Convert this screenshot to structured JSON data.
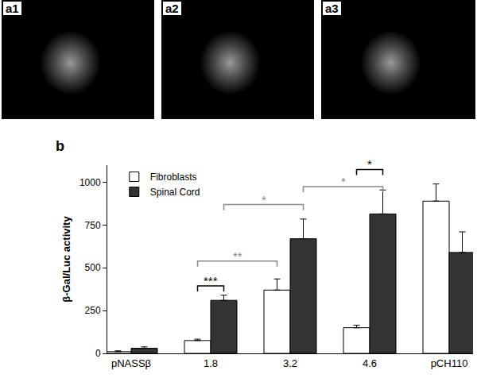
{
  "image_panels": [
    {
      "label": "a1"
    },
    {
      "label": "a2"
    },
    {
      "label": "a3"
    }
  ],
  "chart_data": {
    "type": "bar",
    "label": "b",
    "categories": [
      "pNASSβ",
      "1.8",
      "3.2",
      "4.6",
      "pCH110"
    ],
    "y_label": "β-Gal/Luc activity",
    "series": [
      {
        "name": "Fibroblasts",
        "color": "#ffffff",
        "values": [
          10,
          75,
          370,
          150,
          890
        ],
        "errors": [
          5,
          8,
          65,
          15,
          100
        ]
      },
      {
        "name": "Spinal Cord",
        "color": "#333333",
        "values": [
          30,
          310,
          670,
          815,
          590
        ],
        "errors": [
          8,
          30,
          115,
          140,
          120
        ]
      }
    ],
    "ylim": [
      0,
      1100
    ],
    "yticks": [
      0,
      250,
      500,
      750,
      1000
    ],
    "grid": false,
    "legend": "upper left",
    "significance": [
      {
        "text": "***",
        "from": {
          "category": "1.8",
          "series": "Fibroblasts"
        },
        "to": {
          "category": "1.8",
          "series": "Spinal Cord"
        },
        "y": 395,
        "color": "#000000"
      },
      {
        "text": "**",
        "from": {
          "category": "1.8",
          "series": "Fibroblasts"
        },
        "to": {
          "category": "3.2",
          "series": "Fibroblasts"
        },
        "y": 540,
        "color": "#888888"
      },
      {
        "text": "*",
        "from": {
          "category": "1.8",
          "series": "Spinal Cord"
        },
        "to": {
          "category": "3.2",
          "series": "Spinal Cord"
        },
        "y": 870,
        "color": "#888888"
      },
      {
        "text": "*",
        "from": {
          "category": "3.2",
          "series": "Spinal Cord"
        },
        "to": {
          "category": "4.6",
          "series": "Spinal Cord"
        },
        "y": 975,
        "color": "#888888"
      },
      {
        "text": "*",
        "from": {
          "category": "4.6",
          "series": "Fibroblasts"
        },
        "to": {
          "category": "4.6",
          "series": "Spinal Cord"
        },
        "y": 1075,
        "color": "#000000"
      }
    ]
  }
}
